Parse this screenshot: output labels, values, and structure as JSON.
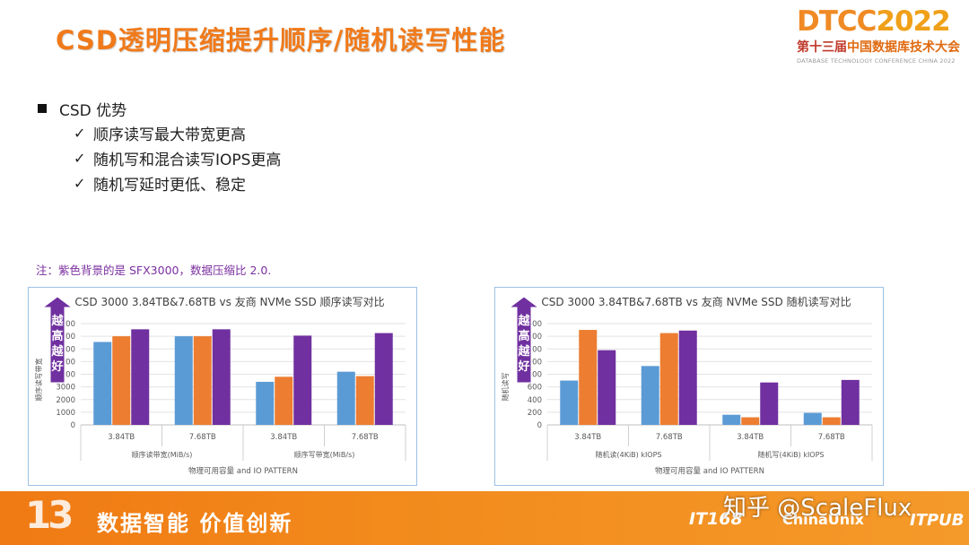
{
  "slide": {
    "title": "CSD透明压缩提升顺序/随机读写性能",
    "logo": {
      "part1": "DTCC",
      "part2": "2022",
      "cn_a": "第十三届",
      "cn_b": "中国数据库技术大会",
      "en": "DATABASE TECHNOLOGY CONFERENCE CHINA 2022"
    },
    "bullets": {
      "main": "CSD 优势",
      "check": "✓",
      "subs": [
        "顺序读写最大带宽更高",
        "随机写和混合读写IOPS更高",
        "随机写延时更低、稳定"
      ]
    },
    "note": "注：紫色背景的是 SFX3000，数据压缩比 2.0.",
    "badge_text": [
      "越",
      "高",
      "越",
      "好"
    ],
    "footer": {
      "num": "13",
      "slogan": "数据智能  价值创新",
      "sponsor1": "IT168",
      "sponsor2": "ChinaUnix",
      "sponsor3": "ITPUB"
    },
    "watermark": "知乎 @ScaleFlux"
  },
  "colors": {
    "blue": "#5b9bd5",
    "orange": "#ed7d31",
    "purple": "#7030a0",
    "accent": "#f07a1a"
  },
  "chart_data": [
    {
      "type": "bar",
      "title": "CSD 3000 3.84TB&7.68TB vs 友商 NVMe SSD 顺序读写对比",
      "ylabel": "顺序读写带宽",
      "xlabel": "物理可用容量 and IO PATTERN",
      "ylim": [
        0,
        8000
      ],
      "yticks": [
        0,
        1000,
        2000,
        3000,
        4000,
        5000,
        6000,
        7000,
        8000
      ],
      "groups": [
        "顺序读带宽(MiB/s)",
        "顺序写带宽(MiB/s)"
      ],
      "categories": [
        "3.84TB",
        "7.68TB",
        "3.84TB",
        "7.68TB"
      ],
      "series": [
        {
          "values": [
            6550,
            7000,
            3400,
            4200
          ]
        },
        {
          "values": [
            7000,
            7000,
            3800,
            3850
          ]
        },
        {
          "values": [
            7550,
            7550,
            7050,
            7250
          ]
        }
      ]
    },
    {
      "type": "bar",
      "title": "CSD 3000 3.84TB&7.68TB vs 友商 NVMe SSD 随机读写对比",
      "ylabel": "随机读写",
      "xlabel": "物理可用容量 and IO PATTERN",
      "ylim": [
        0,
        1600
      ],
      "yticks": [
        0,
        200,
        400,
        600,
        800,
        1000,
        1200,
        1400,
        1600
      ],
      "groups": [
        "随机读(4KiB) kIOPS",
        "随机写(4KiB) kIOPS"
      ],
      "categories": [
        "3.84TB",
        "7.68TB",
        "3.84TB",
        "7.68TB"
      ],
      "series": [
        {
          "values": [
            700,
            930,
            160,
            190
          ]
        },
        {
          "values": [
            1500,
            1450,
            120,
            120
          ]
        },
        {
          "values": [
            1180,
            1490,
            670,
            710
          ]
        }
      ]
    }
  ]
}
